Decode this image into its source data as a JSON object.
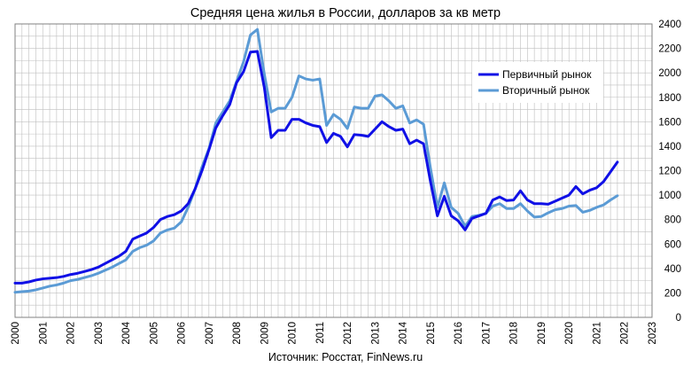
{
  "chart_data": {
    "type": "line",
    "title": "Средняя цена жилья в России, долларов за кв метр",
    "source": "Источник: Росстат, FinNews.ru",
    "xlim": [
      2000,
      2023
    ],
    "ylim": [
      0,
      2400
    ],
    "x_ticks": [
      "2000",
      "2001",
      "2002",
      "2003",
      "2004",
      "2005",
      "2006",
      "2007",
      "2008",
      "2009",
      "2010",
      "2011",
      "2012",
      "2013",
      "2014",
      "2015",
      "2016",
      "2017",
      "2018",
      "2019",
      "2020",
      "2021",
      "2022",
      "2023"
    ],
    "y_ticks": [
      "0",
      "200",
      "400",
      "600",
      "800",
      "1000",
      "1200",
      "1400",
      "1600",
      "1800",
      "2000",
      "2200",
      "2400"
    ],
    "grid": true,
    "legend_position": "top-right",
    "colors": {
      "primary": "#1010e6",
      "secondary": "#5b9bd5",
      "grid": "#bfbfbf",
      "frame": "#808080"
    },
    "series": [
      {
        "name": "Первичный рынок",
        "color": "#1010e6",
        "points": [
          [
            2000.0,
            280
          ],
          [
            2000.25,
            280
          ],
          [
            2000.5,
            290
          ],
          [
            2000.75,
            305
          ],
          [
            2001.0,
            315
          ],
          [
            2001.25,
            320
          ],
          [
            2001.5,
            325
          ],
          [
            2001.75,
            335
          ],
          [
            2002.0,
            350
          ],
          [
            2002.25,
            360
          ],
          [
            2002.5,
            375
          ],
          [
            2002.75,
            390
          ],
          [
            2003.0,
            410
          ],
          [
            2003.25,
            440
          ],
          [
            2003.5,
            470
          ],
          [
            2003.75,
            500
          ],
          [
            2004.0,
            540
          ],
          [
            2004.25,
            640
          ],
          [
            2004.5,
            665
          ],
          [
            2004.75,
            690
          ],
          [
            2005.0,
            735
          ],
          [
            2005.25,
            800
          ],
          [
            2005.5,
            825
          ],
          [
            2005.75,
            840
          ],
          [
            2006.0,
            870
          ],
          [
            2006.25,
            930
          ],
          [
            2006.5,
            1050
          ],
          [
            2006.75,
            1200
          ],
          [
            2007.0,
            1370
          ],
          [
            2007.25,
            1550
          ],
          [
            2007.5,
            1650
          ],
          [
            2007.75,
            1740
          ],
          [
            2008.0,
            1920
          ],
          [
            2008.25,
            2010
          ],
          [
            2008.5,
            2170
          ],
          [
            2008.75,
            2175
          ],
          [
            2009.0,
            1880
          ],
          [
            2009.25,
            1470
          ],
          [
            2009.5,
            1530
          ],
          [
            2009.75,
            1530
          ],
          [
            2010.0,
            1620
          ],
          [
            2010.25,
            1620
          ],
          [
            2010.5,
            1590
          ],
          [
            2010.75,
            1570
          ],
          [
            2011.0,
            1560
          ],
          [
            2011.25,
            1430
          ],
          [
            2011.5,
            1505
          ],
          [
            2011.75,
            1480
          ],
          [
            2012.0,
            1395
          ],
          [
            2012.25,
            1495
          ],
          [
            2012.5,
            1490
          ],
          [
            2012.75,
            1480
          ],
          [
            2013.0,
            1540
          ],
          [
            2013.25,
            1600
          ],
          [
            2013.5,
            1560
          ],
          [
            2013.75,
            1530
          ],
          [
            2014.0,
            1540
          ],
          [
            2014.25,
            1420
          ],
          [
            2014.5,
            1450
          ],
          [
            2014.75,
            1420
          ],
          [
            2015.0,
            1110
          ],
          [
            2015.25,
            830
          ],
          [
            2015.5,
            990
          ],
          [
            2015.75,
            830
          ],
          [
            2016.0,
            790
          ],
          [
            2016.25,
            715
          ],
          [
            2016.5,
            810
          ],
          [
            2016.75,
            830
          ],
          [
            2017.0,
            850
          ],
          [
            2017.25,
            960
          ],
          [
            2017.5,
            985
          ],
          [
            2017.75,
            955
          ],
          [
            2018.0,
            960
          ],
          [
            2018.25,
            1035
          ],
          [
            2018.5,
            960
          ],
          [
            2018.75,
            930
          ],
          [
            2019.0,
            930
          ],
          [
            2019.25,
            925
          ],
          [
            2019.5,
            950
          ],
          [
            2019.75,
            975
          ],
          [
            2020.0,
            1000
          ],
          [
            2020.25,
            1070
          ],
          [
            2020.5,
            1010
          ],
          [
            2020.75,
            1040
          ],
          [
            2021.0,
            1060
          ],
          [
            2021.25,
            1110
          ],
          [
            2021.5,
            1190
          ],
          [
            2021.75,
            1270
          ]
        ]
      },
      {
        "name": "Вторичный рынок",
        "color": "#5b9bd5",
        "points": [
          [
            2000.0,
            205
          ],
          [
            2000.25,
            210
          ],
          [
            2000.5,
            215
          ],
          [
            2000.75,
            225
          ],
          [
            2001.0,
            240
          ],
          [
            2001.25,
            255
          ],
          [
            2001.5,
            265
          ],
          [
            2001.75,
            280
          ],
          [
            2002.0,
            300
          ],
          [
            2002.25,
            310
          ],
          [
            2002.5,
            325
          ],
          [
            2002.75,
            340
          ],
          [
            2003.0,
            360
          ],
          [
            2003.25,
            385
          ],
          [
            2003.5,
            410
          ],
          [
            2003.75,
            440
          ],
          [
            2004.0,
            470
          ],
          [
            2004.25,
            540
          ],
          [
            2004.5,
            570
          ],
          [
            2004.75,
            590
          ],
          [
            2005.0,
            625
          ],
          [
            2005.25,
            690
          ],
          [
            2005.5,
            715
          ],
          [
            2005.75,
            730
          ],
          [
            2006.0,
            780
          ],
          [
            2006.25,
            900
          ],
          [
            2006.5,
            1050
          ],
          [
            2006.75,
            1230
          ],
          [
            2007.0,
            1380
          ],
          [
            2007.25,
            1590
          ],
          [
            2007.5,
            1680
          ],
          [
            2007.75,
            1770
          ],
          [
            2008.0,
            1930
          ],
          [
            2008.25,
            2090
          ],
          [
            2008.5,
            2310
          ],
          [
            2008.75,
            2355
          ],
          [
            2009.0,
            1990
          ],
          [
            2009.25,
            1680
          ],
          [
            2009.5,
            1710
          ],
          [
            2009.75,
            1710
          ],
          [
            2010.0,
            1800
          ],
          [
            2010.25,
            1975
          ],
          [
            2010.5,
            1950
          ],
          [
            2010.75,
            1940
          ],
          [
            2011.0,
            1950
          ],
          [
            2011.25,
            1570
          ],
          [
            2011.5,
            1660
          ],
          [
            2011.75,
            1620
          ],
          [
            2012.0,
            1545
          ],
          [
            2012.25,
            1720
          ],
          [
            2012.5,
            1710
          ],
          [
            2012.75,
            1710
          ],
          [
            2013.0,
            1810
          ],
          [
            2013.25,
            1820
          ],
          [
            2013.5,
            1770
          ],
          [
            2013.75,
            1710
          ],
          [
            2014.0,
            1730
          ],
          [
            2014.25,
            1590
          ],
          [
            2014.5,
            1615
          ],
          [
            2014.75,
            1580
          ],
          [
            2015.0,
            1220
          ],
          [
            2015.25,
            900
          ],
          [
            2015.5,
            1100
          ],
          [
            2015.75,
            900
          ],
          [
            2016.0,
            850
          ],
          [
            2016.25,
            745
          ],
          [
            2016.5,
            825
          ],
          [
            2016.75,
            835
          ],
          [
            2017.0,
            850
          ],
          [
            2017.25,
            910
          ],
          [
            2017.5,
            930
          ],
          [
            2017.75,
            890
          ],
          [
            2018.0,
            890
          ],
          [
            2018.25,
            930
          ],
          [
            2018.5,
            870
          ],
          [
            2018.75,
            820
          ],
          [
            2019.0,
            825
          ],
          [
            2019.25,
            855
          ],
          [
            2019.5,
            880
          ],
          [
            2019.75,
            890
          ],
          [
            2020.0,
            910
          ],
          [
            2020.25,
            915
          ],
          [
            2020.5,
            860
          ],
          [
            2020.75,
            875
          ],
          [
            2021.0,
            900
          ],
          [
            2021.25,
            920
          ],
          [
            2021.5,
            960
          ],
          [
            2021.75,
            995
          ]
        ]
      }
    ]
  }
}
